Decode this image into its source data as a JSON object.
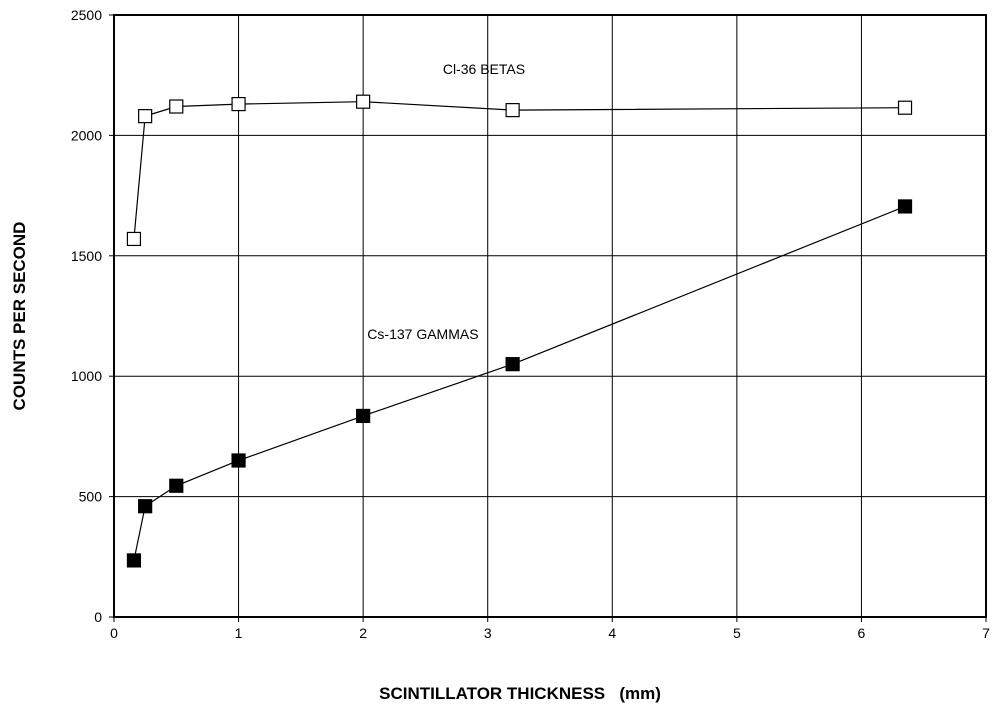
{
  "chart_data": {
    "type": "scatter",
    "title": "",
    "xlabel": "SCINTILLATOR THICKNESS   (mm)",
    "ylabel": "COUNTS PER SECOND",
    "xlim": [
      0,
      7
    ],
    "ylim": [
      0,
      2500
    ],
    "x_ticks": [
      "0",
      "1",
      "2",
      "3",
      "4",
      "5",
      "6",
      "7"
    ],
    "y_ticks": [
      "0",
      "500",
      "1000",
      "1500",
      "2000",
      "2500"
    ],
    "grid": true,
    "lines_connecting_points": true,
    "series": [
      {
        "label": "Cl-36 BETAS",
        "marker": "open-square",
        "color": "#000000",
        "x": [
          0.16,
          0.25,
          0.5,
          1.0,
          2.0,
          3.2,
          6.35
        ],
        "y": [
          1570,
          2080,
          2120,
          2130,
          2140,
          2105,
          2115
        ]
      },
      {
        "label": "Cs-137 GAMMAS",
        "marker": "filled-square",
        "color": "#000000",
        "x": [
          0.16,
          0.25,
          0.5,
          1.0,
          2.0,
          3.2,
          6.35
        ],
        "y": [
          235,
          460,
          545,
          650,
          835,
          1050,
          1705
        ]
      }
    ]
  }
}
